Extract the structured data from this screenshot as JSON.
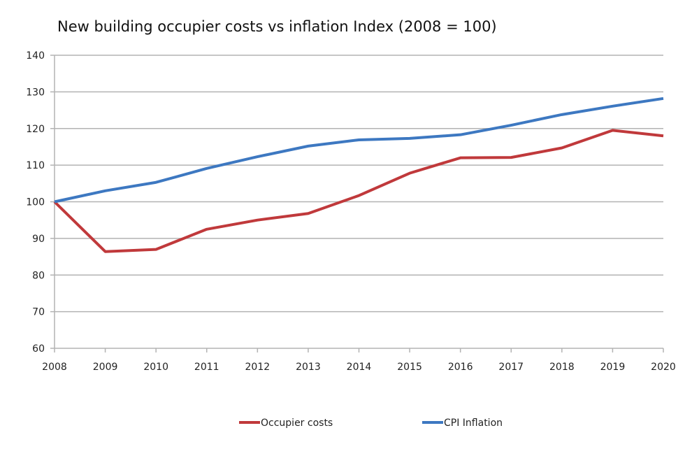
{
  "chart_data": {
    "type": "line",
    "title": "New building occupier costs vs inflation Index (2008 = 100)",
    "xlabel": "",
    "ylabel": "",
    "x": [
      2008,
      2009,
      2010,
      2011,
      2012,
      2013,
      2014,
      2015,
      2016,
      2017,
      2018,
      2019,
      2020
    ],
    "ylim": [
      60,
      140
    ],
    "yticks": [
      60,
      70,
      80,
      90,
      100,
      110,
      120,
      130,
      140
    ],
    "grid": true,
    "legend_placement": "bottom",
    "series": [
      {
        "name": "Occupier costs",
        "color": "#c0393b",
        "values": [
          100,
          86.4,
          87.0,
          92.5,
          95.0,
          96.8,
          101.7,
          107.8,
          112.0,
          112.1,
          114.7,
          119.5,
          118.0
        ]
      },
      {
        "name": "CPI Inflation",
        "color": "#3d78c1",
        "values": [
          100,
          103.0,
          105.3,
          109.1,
          112.3,
          115.2,
          116.9,
          117.3,
          118.3,
          120.9,
          123.8,
          126.1,
          128.2
        ]
      }
    ]
  }
}
